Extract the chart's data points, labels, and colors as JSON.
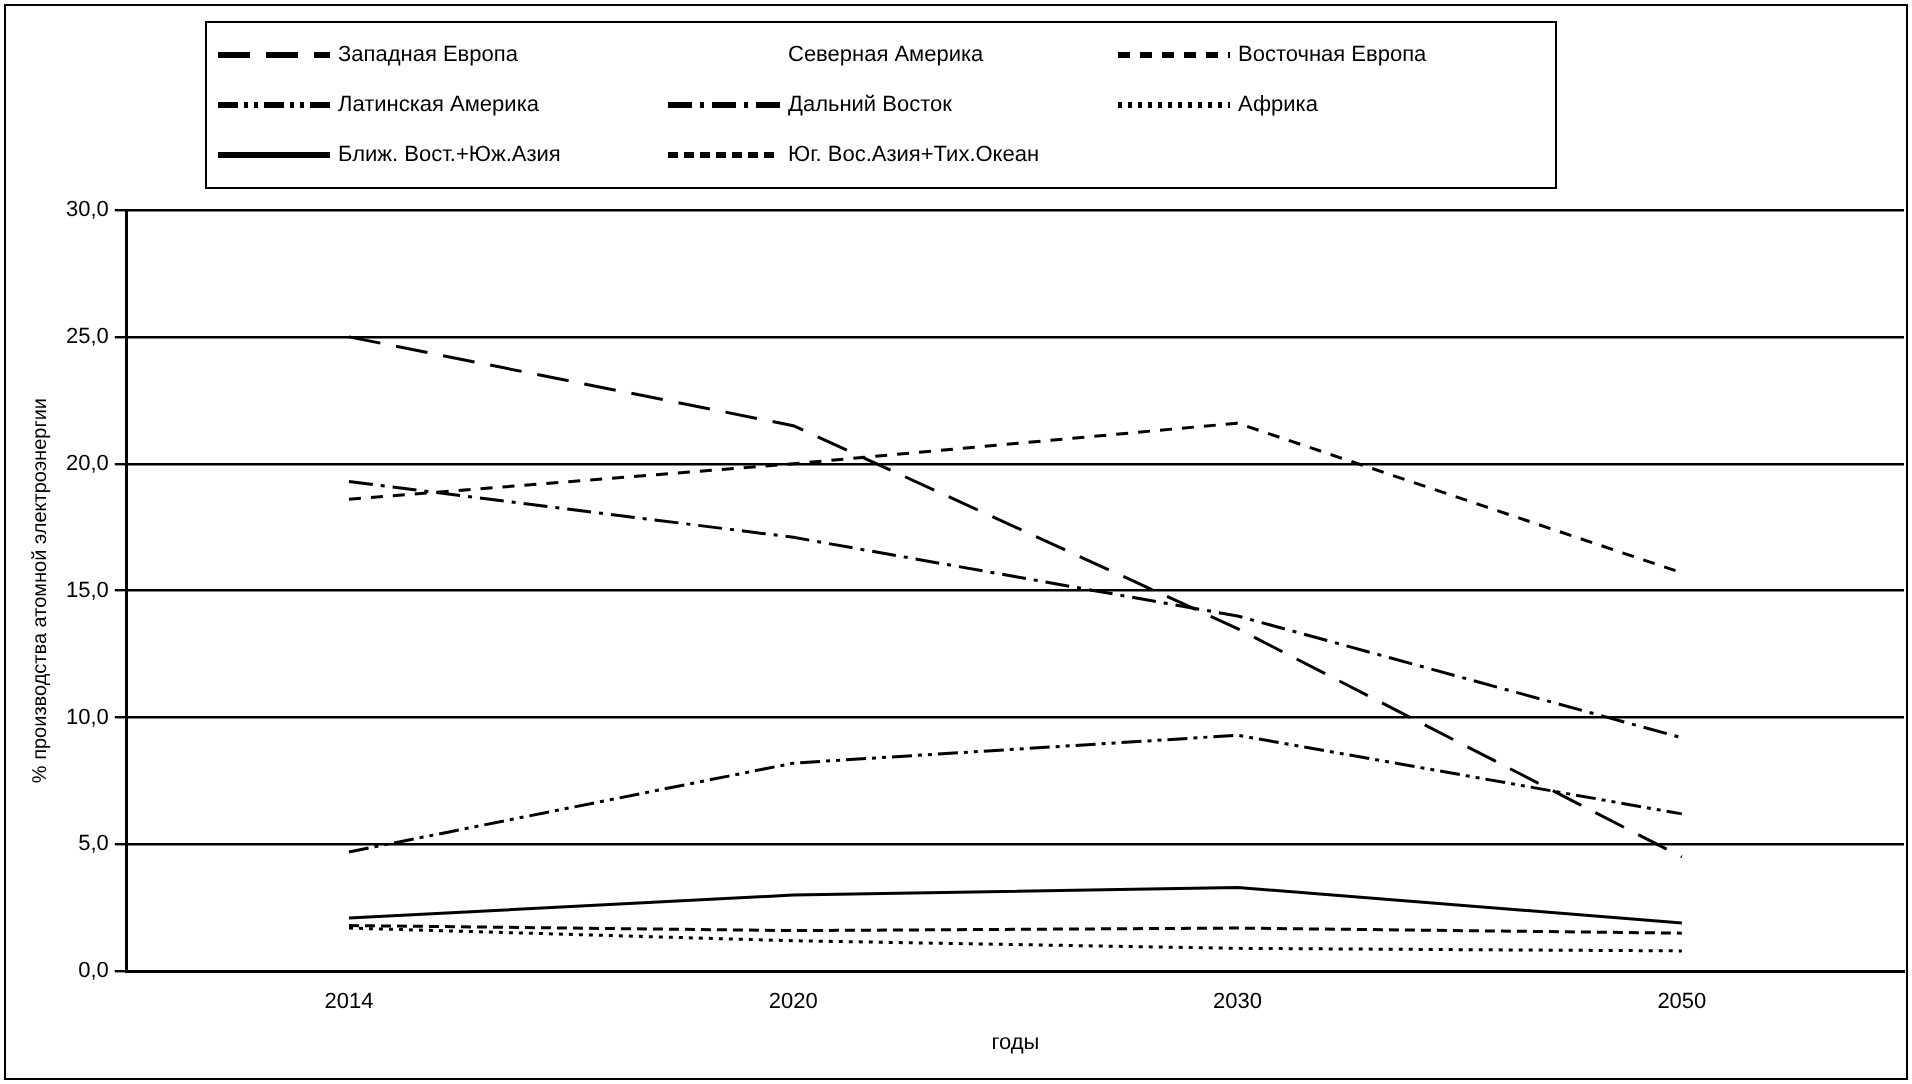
{
  "chart_data": {
    "type": "line",
    "xlabel": "годы",
    "ylabel": "% производства атомной электроэнергии",
    "categories": [
      "2014",
      "2020",
      "2030",
      "2050"
    ],
    "series": [
      {
        "name": "Западная Европа",
        "color": "#000000",
        "line_style": "longdash",
        "values": [
          25.0,
          21.5,
          13.5,
          4.5
        ]
      },
      {
        "name": "Северная Америка",
        "line_style": "solid",
        "values": [
          null,
          null,
          null,
          null
        ]
      },
      {
        "name": "Восточная Европа",
        "color": "#000000",
        "line_style": "dashed",
        "values": [
          18.6,
          20.0,
          21.6,
          15.7
        ]
      },
      {
        "name": "Латинская Америка",
        "color": "#000000",
        "line_style": "dashdotdot",
        "values": [
          4.7,
          8.2,
          9.3,
          6.2
        ]
      },
      {
        "name": "Дальний Восток",
        "color": "#000000",
        "line_style": "dashdot",
        "values": [
          19.3,
          17.1,
          14.0,
          9.2
        ]
      },
      {
        "name": "Африка",
        "color": "#000000",
        "line_style": "dotted",
        "values": [
          1.7,
          1.2,
          0.9,
          0.8
        ]
      },
      {
        "name": "Ближ. Вост.+Юж.Азия",
        "color": "#000000",
        "line_style": "solid",
        "values": [
          2.1,
          3.0,
          3.3,
          1.9
        ]
      },
      {
        "name": "Юг. Вос.Азия+Тих.Океан",
        "color": "#000000",
        "line_style": "shortdash",
        "values": [
          1.8,
          1.6,
          1.7,
          1.5
        ]
      }
    ],
    "ylim": [
      0,
      30
    ],
    "yticks": [
      {
        "value": 0,
        "label": "0,0"
      },
      {
        "value": 5,
        "label": "5,0"
      },
      {
        "value": 10,
        "label": "10,0"
      },
      {
        "value": 15,
        "label": "15,0"
      },
      {
        "value": 20,
        "label": "20,0"
      },
      {
        "value": 25,
        "label": "25,0"
      },
      {
        "value": 30,
        "label": "30,0"
      }
    ],
    "grid": "y",
    "legend": "top",
    "marker": "none"
  }
}
